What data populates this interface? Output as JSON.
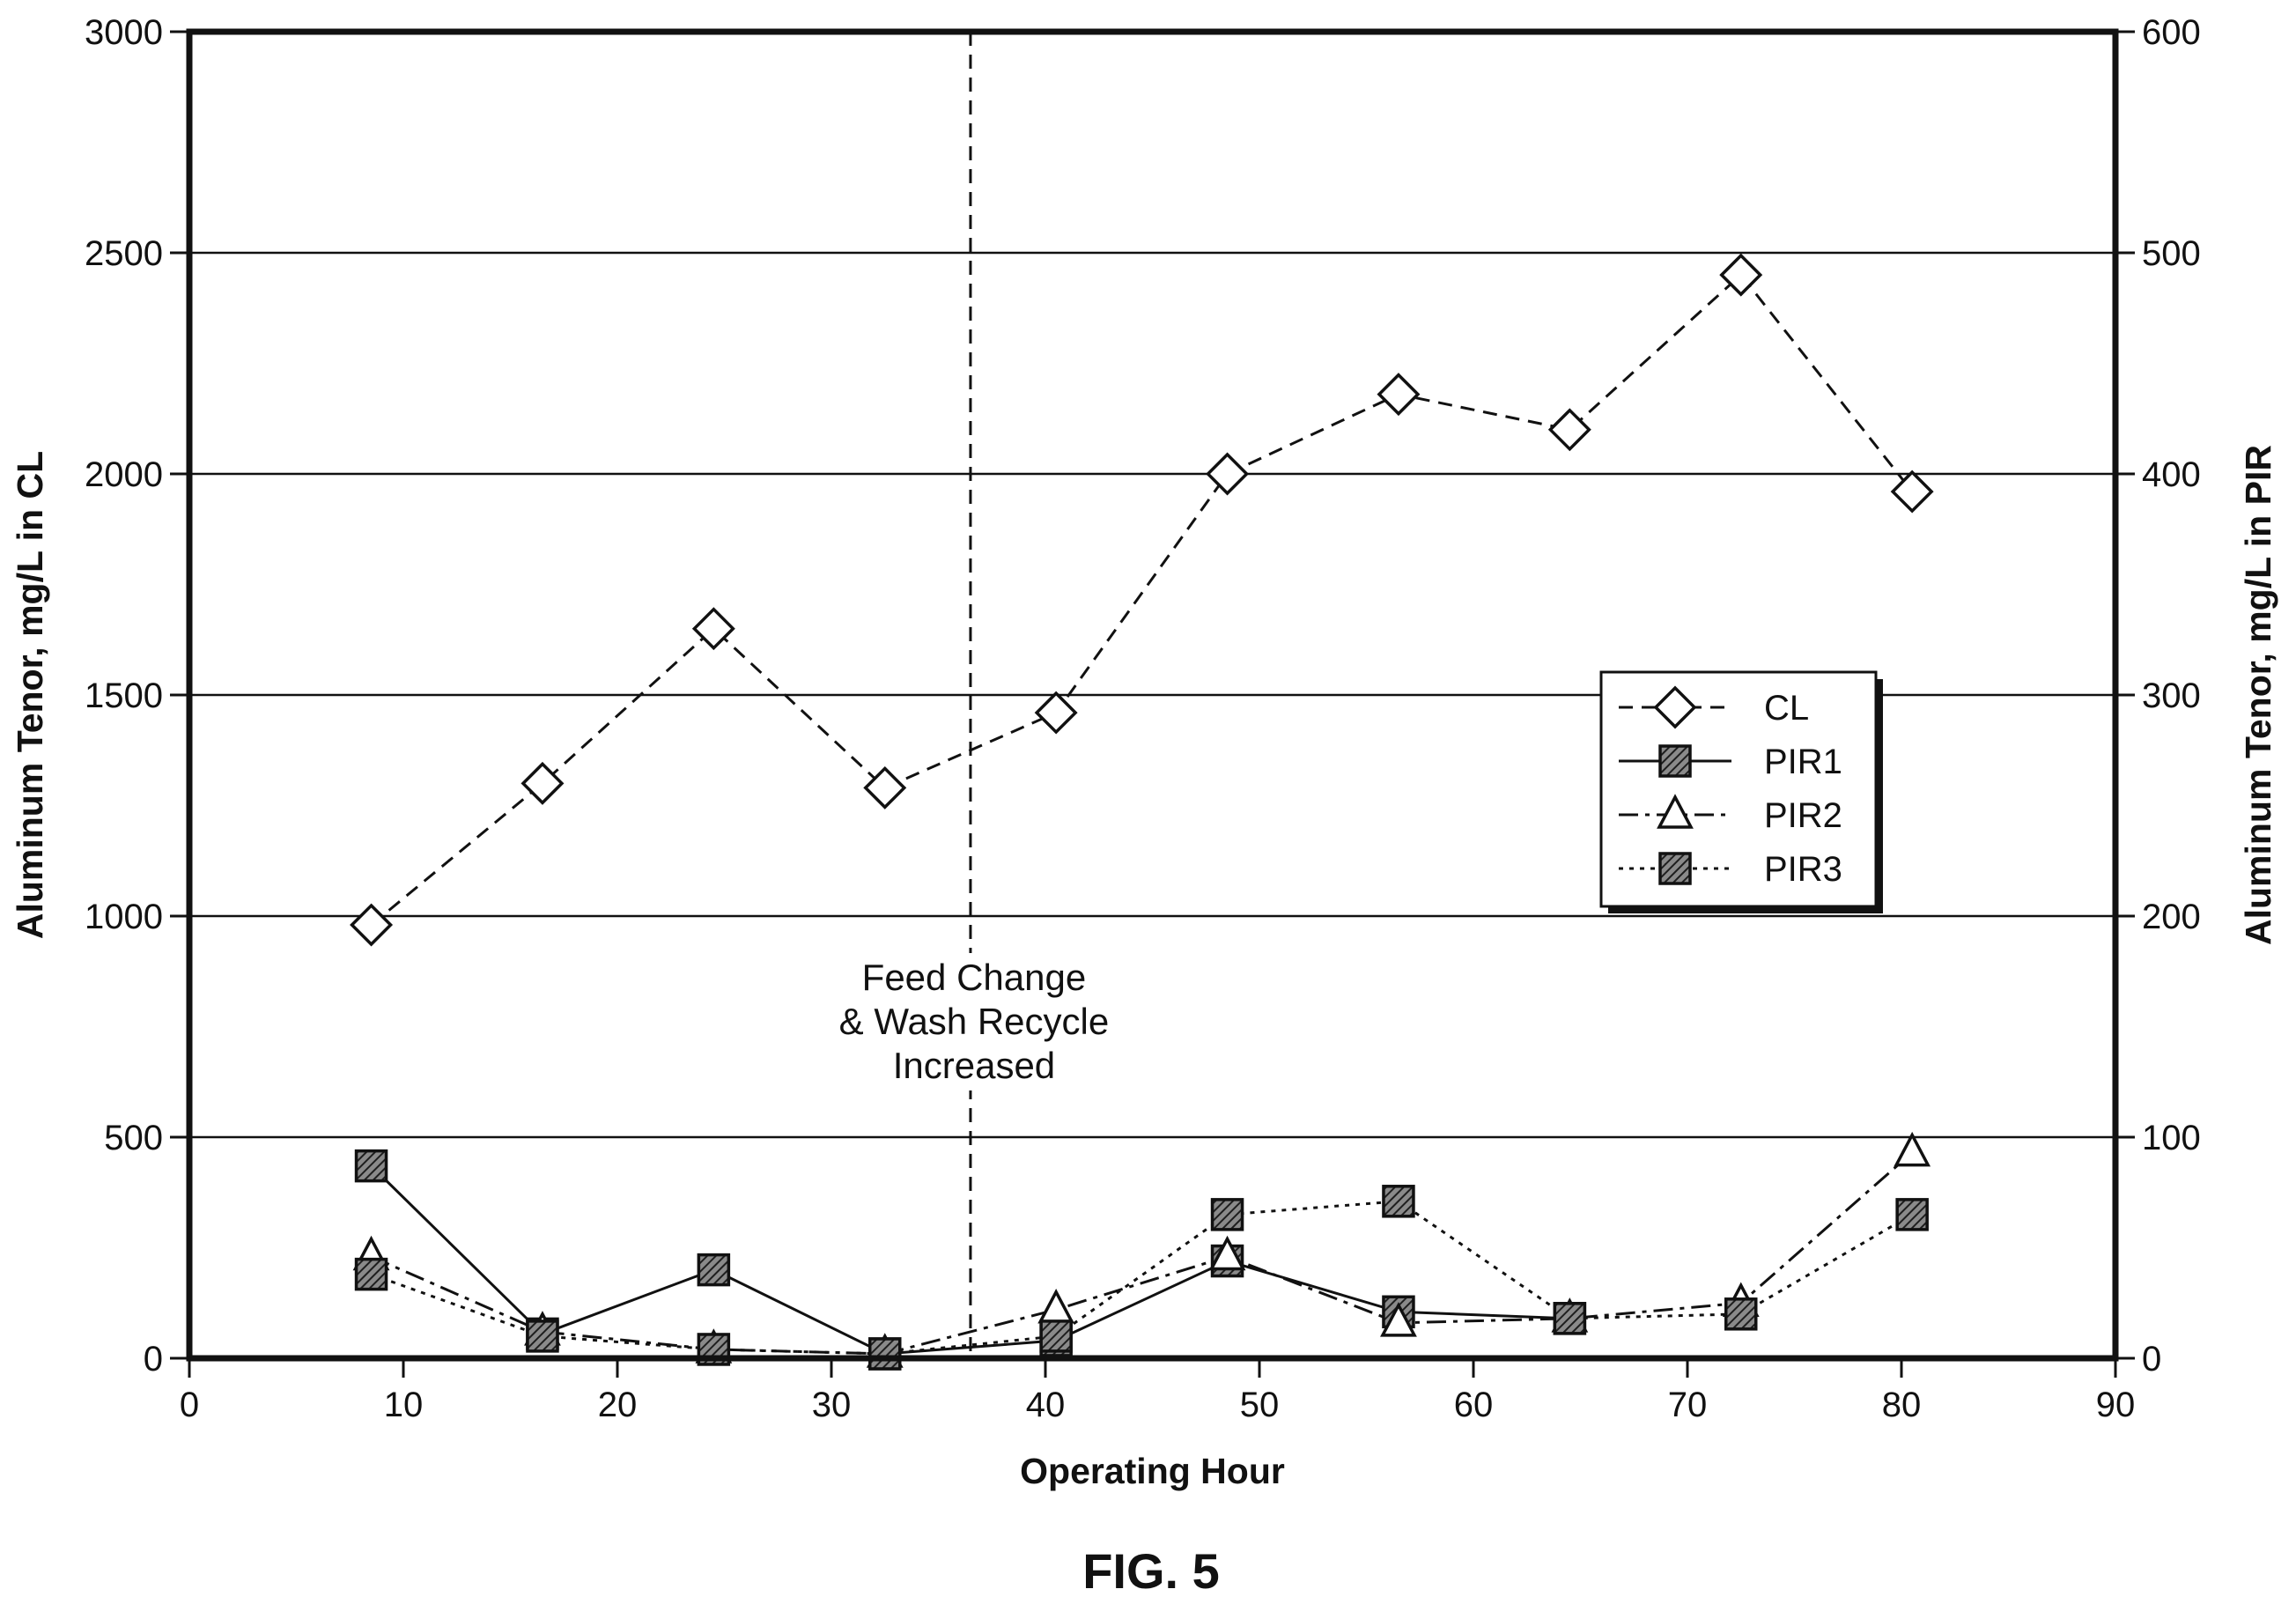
{
  "chart_data": {
    "type": "line",
    "x_axis": {
      "label": "Operating Hour",
      "min": 0,
      "max": 90,
      "ticks": [
        0,
        10,
        20,
        30,
        40,
        50,
        60,
        70,
        80,
        90
      ]
    },
    "y_axis_left": {
      "label": "Aluminum Tenor, mg/L in CL",
      "min": 0,
      "max": 3000,
      "ticks": [
        0,
        500,
        1000,
        1500,
        2000,
        2500,
        3000
      ]
    },
    "y_axis_right": {
      "label": "Aluminum Tenor, mg/L in PIR",
      "min": 0,
      "max": 600,
      "ticks": [
        0,
        100,
        200,
        300,
        400,
        500,
        600
      ]
    },
    "grid": "horizontal",
    "legend": {
      "placement": "right-middle",
      "entries": [
        "CL",
        "PIR1",
        "PIR2",
        "PIR3"
      ]
    },
    "series": [
      {
        "name": "CL",
        "axis": "left",
        "marker": "diamond-open",
        "line": "dashed",
        "x": [
          8.5,
          16.5,
          24.5,
          32.5,
          40.5,
          48.5,
          56.5,
          64.5,
          72.5,
          80.5
        ],
        "y": [
          980,
          1300,
          1650,
          1290,
          1460,
          2000,
          2180,
          2100,
          2450,
          1960
        ]
      },
      {
        "name": "PIR1",
        "axis": "right",
        "marker": "square-hatched",
        "line": "solid",
        "x": [
          8.5,
          16.5,
          24.5,
          32.5,
          40.5,
          48.5,
          56.5,
          64.5
        ],
        "y": [
          87,
          11,
          40,
          2,
          8,
          44,
          21,
          18
        ]
      },
      {
        "name": "PIR2",
        "axis": "right",
        "marker": "triangle-open",
        "line": "dashdot",
        "x": [
          8.5,
          16.5,
          24.5,
          32.5,
          40.5,
          48.5,
          56.5,
          64.5,
          72.5,
          80.5
        ],
        "y": [
          46,
          12,
          4,
          2,
          22,
          46,
          16,
          18,
          25,
          93
        ]
      },
      {
        "name": "PIR3",
        "axis": "right",
        "marker": "square-hatched",
        "line": "dotted",
        "x": [
          8.5,
          16.5,
          24.5,
          32.5,
          40.5,
          48.5,
          56.5,
          64.5,
          72.5,
          80.5
        ],
        "y": [
          38,
          10,
          4,
          2,
          10,
          65,
          71,
          18,
          20,
          65
        ]
      }
    ],
    "annotation": {
      "x": 36.5,
      "style": "dashed-vertical-line",
      "text_lines": [
        "Feed Change",
        "& Wash Recycle",
        "Increased"
      ]
    }
  },
  "figure_label": "FIG. 5"
}
